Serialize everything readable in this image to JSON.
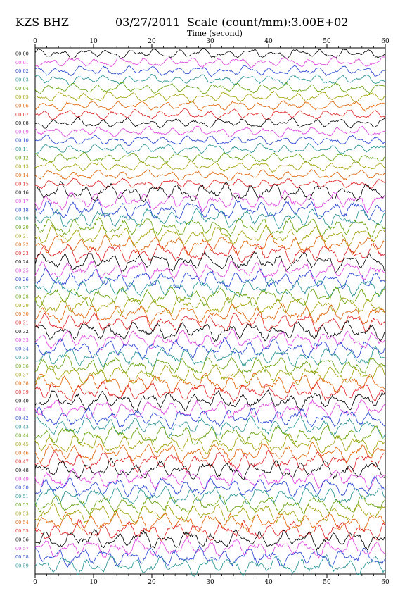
{
  "header": {
    "station": "KZS BHZ",
    "date": "03/27/2011",
    "scale": "Scale (count/mm):3.00E+02"
  },
  "chart_data": {
    "type": "line",
    "title": "",
    "xlabel": "Time (second)",
    "ylabel": "",
    "xlim": [
      0,
      60
    ],
    "x_ticks": [
      0,
      10,
      20,
      30,
      40,
      50,
      60
    ],
    "grid": false,
    "row_labels": [
      "00:00",
      "00:01",
      "00:02",
      "00:03",
      "00:04",
      "00:05",
      "00:06",
      "00:07",
      "00:08",
      "00:09",
      "00:10",
      "00:11",
      "00:12",
      "00:13",
      "00:14",
      "00:15",
      "00:16",
      "00:17",
      "00:18",
      "00:19",
      "00:20",
      "00:21",
      "00:22",
      "00:23",
      "00:24",
      "00:25",
      "00:26",
      "00:27",
      "00:28",
      "00:29",
      "00:30",
      "00:31",
      "00:32",
      "00:33",
      "00:34",
      "00:35",
      "00:36",
      "00:37",
      "00:38",
      "00:39",
      "00:40",
      "00:41",
      "00:42",
      "00:43",
      "00:44",
      "00:45",
      "00:46",
      "00:47",
      "00:48",
      "00:49",
      "00:50",
      "00:51",
      "00:52",
      "00:53",
      "00:54",
      "00:55",
      "00:56",
      "00:57",
      "00:58",
      "00:59"
    ],
    "trace_colors": [
      "#000000",
      "#e040e0",
      "#2040d0",
      "#209090",
      "#60a000",
      "#a0a000",
      "#e06000",
      "#e02020"
    ]
  }
}
